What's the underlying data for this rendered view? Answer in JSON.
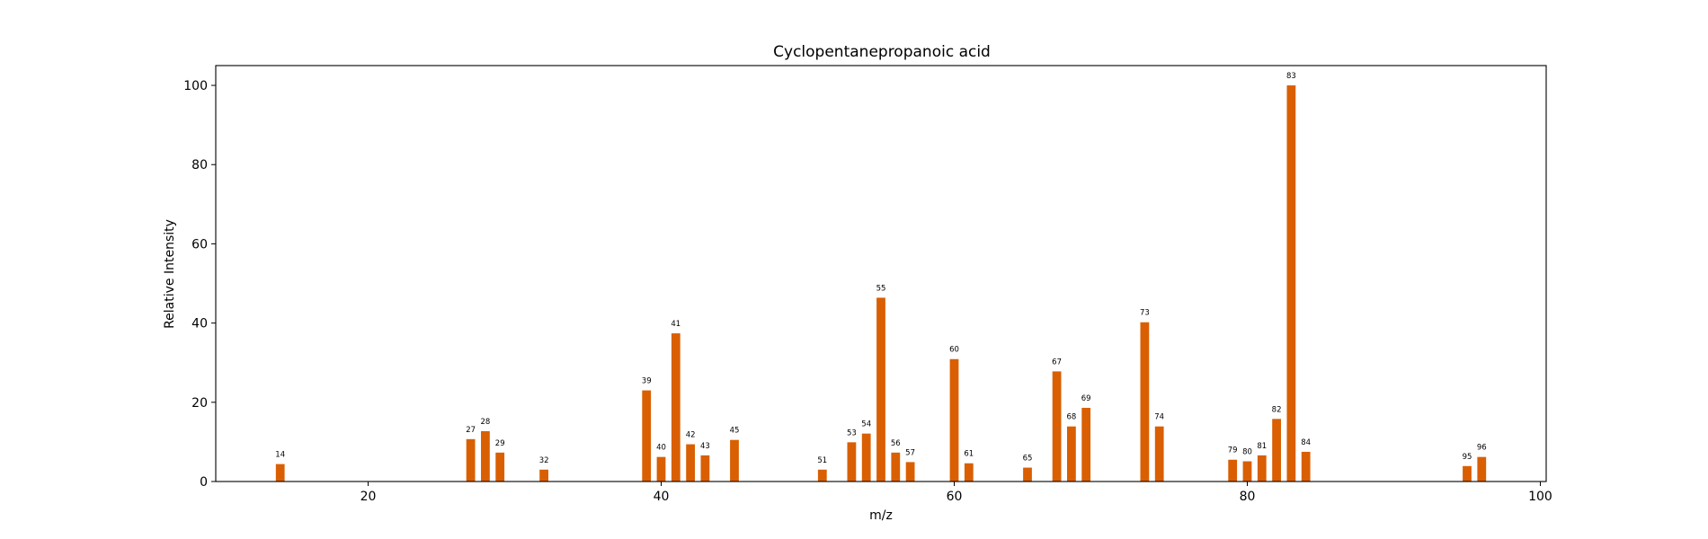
{
  "chart_data": {
    "type": "bar",
    "title": "Cyclopentanepropanoic acid",
    "xlabel": "m/z",
    "ylabel": "Relative Intensity",
    "xlim": [
      9.6,
      100.4
    ],
    "ylim": [
      0,
      105
    ],
    "xticks": [
      20,
      40,
      60,
      80,
      100
    ],
    "yticks": [
      0,
      20,
      40,
      60,
      80,
      100
    ],
    "grid": false,
    "bar_color": "#d95f02",
    "x": [
      14,
      27,
      28,
      29,
      32,
      39,
      40,
      41,
      42,
      43,
      45,
      51,
      53,
      54,
      55,
      56,
      57,
      60,
      61,
      65,
      67,
      68,
      69,
      73,
      74,
      79,
      80,
      81,
      82,
      83,
      84,
      95,
      96
    ],
    "values": [
      4.4,
      10.7,
      12.7,
      7.3,
      3.0,
      23.0,
      6.2,
      37.4,
      9.4,
      6.6,
      10.5,
      3.0,
      9.9,
      12.1,
      46.4,
      7.3,
      4.9,
      30.9,
      4.6,
      3.5,
      27.8,
      13.9,
      18.6,
      40.2,
      13.9,
      5.5,
      5.1,
      6.6,
      15.8,
      100.0,
      7.5,
      3.9,
      6.2
    ],
    "labels": [
      "14",
      "27",
      "28",
      "29",
      "32",
      "39",
      "40",
      "41",
      "42",
      "43",
      "45",
      "51",
      "53",
      "54",
      "55",
      "56",
      "57",
      "60",
      "61",
      "65",
      "67",
      "68",
      "69",
      "73",
      "74",
      "79",
      "80",
      "81",
      "82",
      "83",
      "84",
      "95",
      "96"
    ]
  }
}
